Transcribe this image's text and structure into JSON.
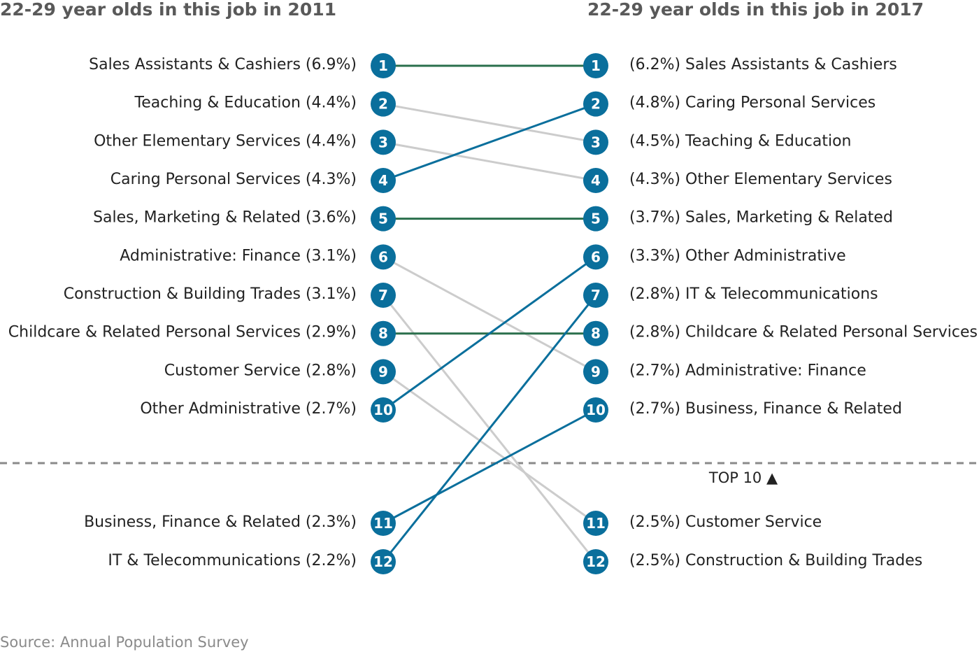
{
  "colors": {
    "node": "#0a6f9c",
    "same": "#2a6f4c",
    "up": "#0a6f9c",
    "down": "#cccccc",
    "divider": "#8a8a8a",
    "title": "#595959",
    "text": "#222222",
    "source": "#8a8a8a"
  },
  "chart_data": {
    "type": "slope",
    "left_title": "22-29 year olds in this job in 2011",
    "right_title": "22-29 year olds in this job in 2017",
    "cutoff_label": "TOP 10 ▲",
    "source": "Source: Annual Population Survey",
    "left": [
      {
        "rank": 1,
        "name": "Sales Assistants & Cashiers",
        "pct": "6.9%"
      },
      {
        "rank": 2,
        "name": "Teaching & Education",
        "pct": "4.4%"
      },
      {
        "rank": 3,
        "name": "Other Elementary Services",
        "pct": "4.4%"
      },
      {
        "rank": 4,
        "name": "Caring Personal Services",
        "pct": "4.3%"
      },
      {
        "rank": 5,
        "name": "Sales, Marketing & Related",
        "pct": "3.6%"
      },
      {
        "rank": 6,
        "name": "Administrative: Finance",
        "pct": "3.1%"
      },
      {
        "rank": 7,
        "name": "Construction & Building Trades",
        "pct": "3.1%"
      },
      {
        "rank": 8,
        "name": "Childcare & Related Personal Services",
        "pct": "2.9%"
      },
      {
        "rank": 9,
        "name": "Customer Service",
        "pct": "2.8%"
      },
      {
        "rank": 10,
        "name": "Other Administrative",
        "pct": "2.7%"
      },
      {
        "rank": 11,
        "name": "Business, Finance & Related",
        "pct": "2.3%"
      },
      {
        "rank": 12,
        "name": "IT & Telecommunications",
        "pct": "2.2%"
      }
    ],
    "right": [
      {
        "rank": 1,
        "name": "Sales Assistants & Cashiers",
        "pct": "6.2%"
      },
      {
        "rank": 2,
        "name": "Caring Personal Services",
        "pct": "4.8%"
      },
      {
        "rank": 3,
        "name": "Teaching & Education",
        "pct": "4.5%"
      },
      {
        "rank": 4,
        "name": "Other Elementary Services",
        "pct": "4.3%"
      },
      {
        "rank": 5,
        "name": "Sales, Marketing & Related",
        "pct": "3.7%"
      },
      {
        "rank": 6,
        "name": "Other Administrative",
        "pct": "3.3%"
      },
      {
        "rank": 7,
        "name": "IT & Telecommunications",
        "pct": "2.8%"
      },
      {
        "rank": 8,
        "name": "Childcare & Related Personal Services",
        "pct": "2.8%"
      },
      {
        "rank": 9,
        "name": "Administrative: Finance",
        "pct": "2.7%"
      },
      {
        "rank": 10,
        "name": "Business, Finance & Related",
        "pct": "2.7%"
      },
      {
        "rank": 11,
        "name": "Customer Service",
        "pct": "2.5%"
      },
      {
        "rank": 12,
        "name": "Construction & Building Trades",
        "pct": "2.5%"
      }
    ]
  }
}
